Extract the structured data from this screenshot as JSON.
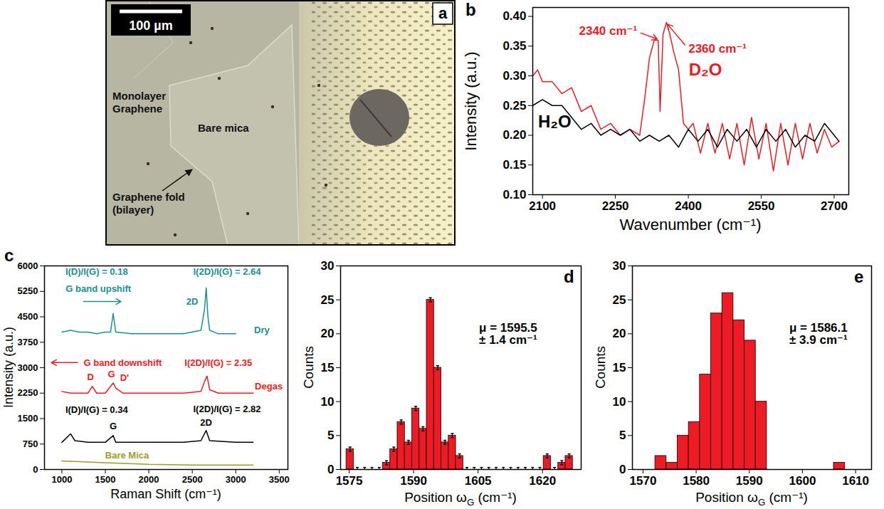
{
  "chart_data": [
    {
      "type": "image",
      "panel": "a",
      "scale_bar": "100 µm",
      "labels": [
        "Monolayer Graphene",
        "Bare mica",
        "Graphene fold (bilayer)"
      ]
    },
    {
      "type": "line",
      "panel": "b",
      "x_label": "Wavenumber (cm⁻¹)",
      "y_label": "Intensity (a.u.)",
      "xlim": [
        2080,
        2730
      ],
      "xticks": [
        2100,
        2250,
        2400,
        2550,
        2700
      ],
      "ylim": [
        0.1,
        0.415
      ],
      "yticks": [
        {
          "value": 0.1,
          "label": "0.10"
        },
        0.15,
        {
          "value": 0.2,
          "label": "0.20"
        },
        0.25,
        {
          "value": 0.3,
          "label": "0.30"
        },
        0.35,
        {
          "value": 0.4,
          "label": "0.40"
        }
      ],
      "series": [
        {
          "name": "D₂O",
          "color": "#ee1b24",
          "label_at": [
            2435,
            0.31
          ],
          "x": [
            2080,
            2090,
            2100,
            2120,
            2140,
            2160,
            2180,
            2200,
            2220,
            2240,
            2260,
            2280,
            2300,
            2310,
            2320,
            2330,
            2338,
            2342,
            2348,
            2355,
            2362,
            2370,
            2380,
            2390,
            2400,
            2410,
            2425,
            2440,
            2455,
            2470,
            2485,
            2500,
            2515,
            2530,
            2545,
            2560,
            2575,
            2590,
            2605,
            2620,
            2635,
            2650,
            2665,
            2680,
            2695,
            2710
          ],
          "values": [
            0.3,
            0.31,
            0.29,
            0.29,
            0.27,
            0.28,
            0.24,
            0.25,
            0.21,
            0.22,
            0.2,
            0.21,
            0.2,
            0.26,
            0.33,
            0.36,
            0.36,
            0.24,
            0.37,
            0.39,
            0.37,
            0.34,
            0.31,
            0.22,
            0.21,
            0.22,
            0.17,
            0.22,
            0.17,
            0.22,
            0.16,
            0.22,
            0.15,
            0.23,
            0.16,
            0.22,
            0.14,
            0.22,
            0.15,
            0.22,
            0.16,
            0.22,
            0.17,
            0.21,
            0.18,
            0.19
          ]
        },
        {
          "name": "H₂O",
          "color": "#000000",
          "label_at": [
            2125,
            0.222
          ],
          "x": [
            2080,
            2100,
            2120,
            2140,
            2160,
            2180,
            2200,
            2220,
            2240,
            2260,
            2280,
            2300,
            2320,
            2340,
            2360,
            2380,
            2400,
            2420,
            2440,
            2460,
            2480,
            2500,
            2520,
            2540,
            2560,
            2580,
            2600,
            2620,
            2640,
            2660,
            2680,
            2700,
            2710
          ],
          "values": [
            0.25,
            0.26,
            0.25,
            0.25,
            0.23,
            0.21,
            0.22,
            0.2,
            0.21,
            0.2,
            0.21,
            0.19,
            0.2,
            0.19,
            0.2,
            0.18,
            0.21,
            0.19,
            0.21,
            0.18,
            0.21,
            0.19,
            0.21,
            0.18,
            0.21,
            0.19,
            0.21,
            0.18,
            0.2,
            0.19,
            0.22,
            0.2,
            0.19
          ]
        }
      ],
      "annotations": [
        {
          "text": "2340 cm⁻¹",
          "x": 2235,
          "y": 0.375,
          "color": "#ee1b24",
          "arrow": [
            2302,
            0.372,
            2336,
            0.362
          ]
        },
        {
          "text": "2360 cm⁻¹",
          "x": 2460,
          "y": 0.345,
          "color": "#ee1b24",
          "arrow": [
            2393,
            0.352,
            2357,
            0.387
          ]
        }
      ]
    },
    {
      "type": "line",
      "panel": "c",
      "x_label": "Raman Shift (cm⁻¹)",
      "y_label": "Intensity (a.u.)",
      "xlim": [
        800,
        3600
      ],
      "xticks": [
        1000,
        1500,
        2000,
        2500,
        3000,
        3500
      ],
      "ylim": [
        0,
        6000
      ],
      "yticks": [
        0,
        750,
        1500,
        2250,
        3000,
        3750,
        4500,
        5250,
        6000
      ],
      "series": [
        {
          "name": "Dry",
          "color": "#1a9090",
          "label_at": [
            3300,
            4100
          ],
          "x": [
            1000,
            1100,
            1200,
            1300,
            1400,
            1500,
            1560,
            1590,
            1620,
            1800,
            2000,
            2200,
            2400,
            2600,
            2640,
            2660,
            2680,
            2700,
            2800,
            3000
          ],
          "values": [
            4050,
            4100,
            4050,
            4050,
            4000,
            4050,
            4050,
            4600,
            4050,
            4000,
            4000,
            4000,
            4000,
            4100,
            4700,
            5350,
            4500,
            4100,
            4000,
            4000
          ]
        },
        {
          "name": "Degas",
          "color": "#ee1b24",
          "label_at": [
            3380,
            2450
          ],
          "x": [
            1000,
            1100,
            1200,
            1300,
            1350,
            1400,
            1500,
            1590,
            1620,
            1700,
            2000,
            2200,
            2400,
            2600,
            2650,
            2670,
            2700,
            2800,
            3000,
            3200
          ],
          "values": [
            2300,
            2250,
            2250,
            2250,
            2450,
            2250,
            2250,
            2550,
            2400,
            2250,
            2250,
            2250,
            2250,
            2300,
            2650,
            2750,
            2350,
            2250,
            2250,
            2250
          ]
        },
        {
          "color": "#000000",
          "x": [
            1000,
            1100,
            1150,
            1300,
            1500,
            1590,
            1620,
            2000,
            2400,
            2600,
            2660,
            2700,
            3000,
            3200
          ],
          "values": [
            800,
            1050,
            850,
            800,
            800,
            1000,
            800,
            800,
            800,
            850,
            1150,
            850,
            800,
            800
          ]
        },
        {
          "name": "Bare Mica",
          "color": "#9c9c2a",
          "label_at": [
            1750,
            420
          ],
          "x": [
            1000,
            1500,
            2000,
            2500,
            3200
          ],
          "values": [
            250,
            200,
            150,
            130,
            130
          ]
        }
      ],
      "annotations": [
        {
          "text": "I(D)/I(G) = 0.18",
          "x": 1400,
          "y": 5820,
          "color": "#1a9090"
        },
        {
          "text": "I(2D)/I(G) = 2.64",
          "x": 2900,
          "y": 5820,
          "color": "#1a9090"
        },
        {
          "text": "G band upshift",
          "x": 1420,
          "y": 5320,
          "color": "#1a9090",
          "arrow": [
            1250,
            4950,
            1680,
            4950
          ]
        },
        {
          "text": "2D",
          "x": 2500,
          "y": 4950,
          "color": "#1a9090"
        },
        {
          "text": "G band downshift",
          "x": 1700,
          "y": 3150,
          "color": "#ee1b24",
          "arrow": [
            1180,
            3150,
            880,
            3150
          ]
        },
        {
          "text": "I(2D)/I(G) = 2.35",
          "x": 2800,
          "y": 3150,
          "color": "#ee1b24"
        },
        {
          "text": "D",
          "x": 1330,
          "y": 2720,
          "color": "#ee1b24"
        },
        {
          "text": "G",
          "x": 1570,
          "y": 2800,
          "color": "#ee1b24"
        },
        {
          "text": "D'",
          "x": 1720,
          "y": 2700,
          "color": "#ee1b24"
        },
        {
          "text": "I(D)/I(G) = 0.34",
          "x": 1400,
          "y": 1750,
          "color": "#000000"
        },
        {
          "text": "I(2D)/I(G) = 2.82",
          "x": 2900,
          "y": 1780,
          "color": "#000000"
        },
        {
          "text": "G",
          "x": 1590,
          "y": 1280,
          "color": "#000000"
        },
        {
          "text": "2D",
          "x": 2660,
          "y": 1380,
          "color": "#000000"
        }
      ]
    },
    {
      "type": "histogram",
      "panel": "d",
      "color": "#ee1b24",
      "x_label": "Position ωG (cm⁻¹)",
      "y_label": "Counts",
      "xlim": [
        1573,
        1629
      ],
      "xticks": [
        1575,
        1590,
        1605,
        1620
      ],
      "ylim": [
        0,
        30
      ],
      "yticks": [
        0,
        5,
        10,
        15,
        20,
        25,
        30
      ],
      "bins": [
        1574.35,
        1576.05,
        1577.75,
        1579.45,
        1581.15,
        1582.85,
        1584.55,
        1586.25,
        1587.95,
        1589.65,
        1591.35,
        1593.05,
        1594.75,
        1596.45,
        1598.15,
        1599.85,
        1601.55,
        1603.25,
        1604.95,
        1606.65,
        1608.35,
        1610.05,
        1611.75,
        1613.45,
        1615.15,
        1616.85,
        1618.55,
        1620.25,
        1621.95,
        1623.65,
        1625.35,
        1627.05
      ],
      "counts": [
        3,
        0,
        0,
        0,
        0,
        1,
        3,
        7,
        4,
        9,
        6,
        25,
        15,
        4,
        5,
        2,
        0,
        0,
        0,
        0,
        0,
        0,
        0,
        0,
        0,
        0,
        0,
        2,
        0,
        1,
        2
      ],
      "errors": [
        0.3,
        0.3,
        0.3,
        0.3,
        0.3,
        0.3,
        0.3,
        0.3,
        0.3,
        0.3,
        0.3,
        0.3,
        0.3,
        0.3,
        0.3,
        0.3,
        0.3,
        0.3,
        0.3,
        0.3,
        0.3,
        0.3,
        0.3,
        0.3,
        0.3,
        0.3,
        0.3,
        0.3,
        0.3,
        0.3,
        0.3
      ],
      "annotations": [
        {
          "text": "μ = 1595.5\n± 1.4 cm⁻¹",
          "x": 1612,
          "y": 20,
          "color": "#000000"
        }
      ]
    },
    {
      "type": "histogram",
      "panel": "e",
      "color": "#ee1b24",
      "x_label": "Position ωG (cm⁻¹)",
      "y_label": "Counts",
      "xlim": [
        1568,
        1613
      ],
      "xticks": [
        1570,
        1580,
        1590,
        1600,
        1610
      ],
      "ylim": [
        0,
        30
      ],
      "yticks": [
        0,
        5,
        10,
        15,
        20,
        25,
        30
      ],
      "bins": [
        1572.3,
        1574.4,
        1576.5,
        1578.6,
        1580.7,
        1582.8,
        1584.9,
        1587.0,
        1589.1,
        1591.2,
        1593.3,
        1595.4,
        1597.5,
        1599.6,
        1601.7,
        1603.8,
        1605.9,
        1608.0
      ],
      "counts": [
        2,
        1,
        5,
        7,
        14,
        23,
        26,
        22,
        19,
        10,
        0,
        0,
        0,
        0,
        0,
        0,
        1
      ],
      "annotations": [
        {
          "text": "μ = 1586.1\n± 3.9 cm⁻¹",
          "x": 1603,
          "y": 20,
          "color": "#000000"
        }
      ]
    }
  ]
}
